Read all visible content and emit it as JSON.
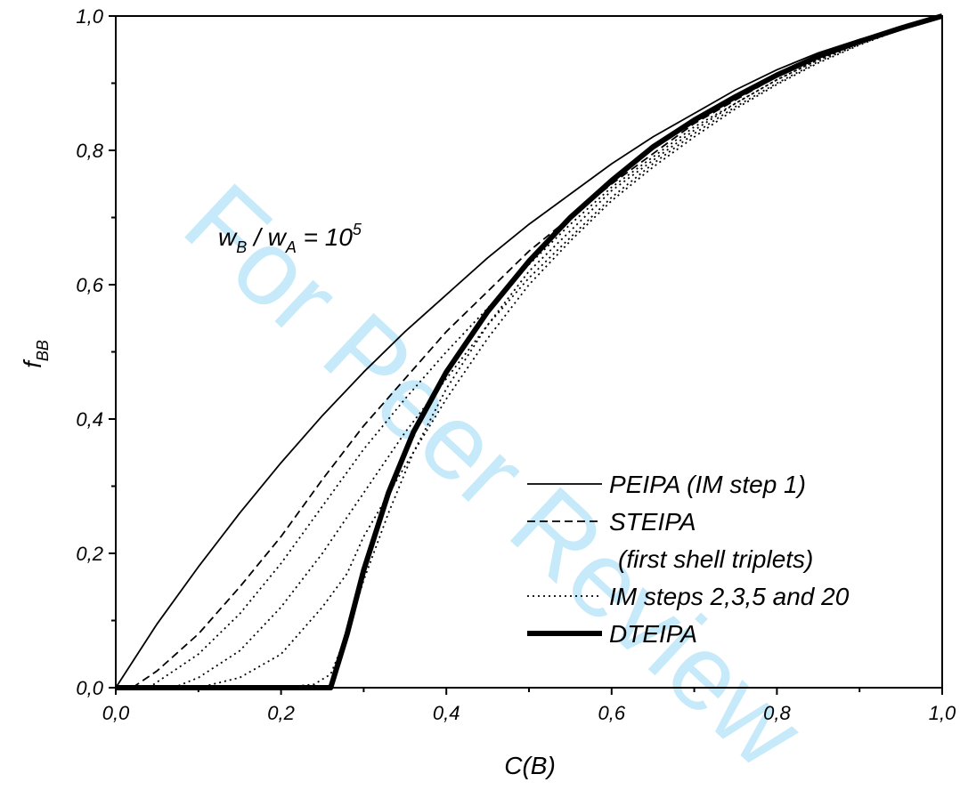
{
  "chart_data": {
    "type": "line",
    "xlabel": "C(B)",
    "ylabel_main": "f",
    "ylabel_sub": "BB",
    "xlim": [
      0,
      1
    ],
    "ylim": [
      0,
      1
    ],
    "x_ticks": [
      {
        "value": 0.0,
        "label": "0,0"
      },
      {
        "value": 0.2,
        "label": "0,2"
      },
      {
        "value": 0.4,
        "label": "0,4"
      },
      {
        "value": 0.6,
        "label": "0,6"
      },
      {
        "value": 0.8,
        "label": "0,8"
      },
      {
        "value": 1.0,
        "label": "1,0"
      }
    ],
    "y_ticks": [
      {
        "value": 0.0,
        "label": "0,0"
      },
      {
        "value": 0.2,
        "label": "0,2"
      },
      {
        "value": 0.4,
        "label": "0,4"
      },
      {
        "value": 0.6,
        "label": "0,6"
      },
      {
        "value": 0.8,
        "label": "0,8"
      },
      {
        "value": 1.0,
        "label": "1,0"
      }
    ],
    "grid": false,
    "legend_position": "bottom-right",
    "annotation": {
      "w": "w",
      "sub_b": "B",
      "slash": " / ",
      "sub_a": "A",
      "eq": " = 10",
      "exp": "5"
    },
    "watermark": "For Peer Review",
    "series": [
      {
        "name": "PEIPA (IM step 1)",
        "style": "solid",
        "in_legend": true,
        "points": [
          [
            0,
            0
          ],
          [
            0.05,
            0.095
          ],
          [
            0.1,
            0.18
          ],
          [
            0.15,
            0.26
          ],
          [
            0.2,
            0.335
          ],
          [
            0.25,
            0.405
          ],
          [
            0.3,
            0.47
          ],
          [
            0.35,
            0.53
          ],
          [
            0.4,
            0.585
          ],
          [
            0.45,
            0.64
          ],
          [
            0.5,
            0.69
          ],
          [
            0.55,
            0.735
          ],
          [
            0.6,
            0.78
          ],
          [
            0.65,
            0.82
          ],
          [
            0.7,
            0.855
          ],
          [
            0.75,
            0.89
          ],
          [
            0.8,
            0.92
          ],
          [
            0.85,
            0.945
          ],
          [
            0.9,
            0.965
          ],
          [
            0.95,
            0.983
          ],
          [
            1,
            1
          ]
        ]
      },
      {
        "name": "STEIPA",
        "style": "dashed",
        "in_legend": true,
        "points": [
          [
            0.02,
            0
          ],
          [
            0.05,
            0.025
          ],
          [
            0.1,
            0.08
          ],
          [
            0.15,
            0.15
          ],
          [
            0.2,
            0.225
          ],
          [
            0.25,
            0.31
          ],
          [
            0.3,
            0.39
          ],
          [
            0.35,
            0.46
          ],
          [
            0.4,
            0.53
          ],
          [
            0.45,
            0.59
          ],
          [
            0.5,
            0.65
          ],
          [
            0.55,
            0.7
          ],
          [
            0.6,
            0.75
          ],
          [
            0.65,
            0.795
          ],
          [
            0.7,
            0.84
          ],
          [
            0.75,
            0.875
          ],
          [
            0.8,
            0.91
          ],
          [
            0.85,
            0.94
          ],
          [
            0.9,
            0.963
          ],
          [
            0.95,
            0.982
          ],
          [
            1,
            1
          ]
        ]
      },
      {
        "name": "(first shell triplets)",
        "style": "none",
        "in_legend": true,
        "points": []
      },
      {
        "name": "IM steps 2,3,5 and 20",
        "style": "dotted",
        "in_legend": true,
        "points": [
          [
            0.04,
            0
          ],
          [
            0.1,
            0.05
          ],
          [
            0.15,
            0.11
          ],
          [
            0.2,
            0.185
          ],
          [
            0.25,
            0.27
          ],
          [
            0.3,
            0.355
          ],
          [
            0.35,
            0.43
          ],
          [
            0.4,
            0.5
          ],
          [
            0.45,
            0.565
          ],
          [
            0.5,
            0.63
          ],
          [
            0.55,
            0.69
          ],
          [
            0.6,
            0.745
          ],
          [
            0.65,
            0.79
          ],
          [
            0.7,
            0.835
          ],
          [
            0.75,
            0.87
          ],
          [
            0.8,
            0.905
          ],
          [
            0.85,
            0.935
          ],
          [
            0.9,
            0.96
          ],
          [
            0.95,
            0.98
          ],
          [
            1,
            1
          ]
        ]
      },
      {
        "name": "",
        "style": "dotted",
        "in_legend": false,
        "points": [
          [
            0.07,
            0
          ],
          [
            0.1,
            0.015
          ],
          [
            0.15,
            0.055
          ],
          [
            0.2,
            0.12
          ],
          [
            0.25,
            0.2
          ],
          [
            0.3,
            0.29
          ],
          [
            0.35,
            0.38
          ],
          [
            0.4,
            0.46
          ],
          [
            0.45,
            0.54
          ],
          [
            0.5,
            0.61
          ],
          [
            0.55,
            0.67
          ],
          [
            0.6,
            0.73
          ],
          [
            0.65,
            0.78
          ],
          [
            0.7,
            0.825
          ],
          [
            0.75,
            0.865
          ],
          [
            0.8,
            0.9
          ],
          [
            0.85,
            0.932
          ],
          [
            0.9,
            0.958
          ],
          [
            0.95,
            0.98
          ],
          [
            1,
            1
          ]
        ]
      },
      {
        "name": "",
        "style": "dotted",
        "in_legend": false,
        "points": [
          [
            0.1,
            0
          ],
          [
            0.15,
            0.015
          ],
          [
            0.2,
            0.05
          ],
          [
            0.25,
            0.12
          ],
          [
            0.28,
            0.17
          ],
          [
            0.3,
            0.225
          ],
          [
            0.35,
            0.33
          ],
          [
            0.4,
            0.43
          ],
          [
            0.45,
            0.52
          ],
          [
            0.5,
            0.6
          ],
          [
            0.55,
            0.665
          ],
          [
            0.6,
            0.725
          ],
          [
            0.65,
            0.775
          ],
          [
            0.7,
            0.82
          ],
          [
            0.75,
            0.862
          ],
          [
            0.8,
            0.898
          ],
          [
            0.85,
            0.93
          ],
          [
            0.9,
            0.957
          ],
          [
            0.95,
            0.98
          ],
          [
            1,
            1
          ]
        ]
      },
      {
        "name": "",
        "style": "dotted",
        "in_legend": false,
        "points": [
          [
            0.2,
            0
          ],
          [
            0.24,
            0.005
          ],
          [
            0.26,
            0.02
          ],
          [
            0.28,
            0.08
          ],
          [
            0.3,
            0.16
          ],
          [
            0.33,
            0.26
          ],
          [
            0.36,
            0.35
          ],
          [
            0.4,
            0.445
          ],
          [
            0.45,
            0.54
          ],
          [
            0.5,
            0.62
          ],
          [
            0.55,
            0.68
          ],
          [
            0.6,
            0.74
          ],
          [
            0.65,
            0.785
          ],
          [
            0.7,
            0.83
          ],
          [
            0.75,
            0.87
          ],
          [
            0.8,
            0.905
          ],
          [
            0.85,
            0.935
          ],
          [
            0.9,
            0.96
          ],
          [
            0.95,
            0.98
          ],
          [
            1,
            1
          ]
        ]
      },
      {
        "name": "DTEIPA",
        "style": "thick",
        "in_legend": true,
        "points": [
          [
            0,
            0
          ],
          [
            0.26,
            0
          ],
          [
            0.28,
            0.08
          ],
          [
            0.3,
            0.175
          ],
          [
            0.33,
            0.29
          ],
          [
            0.36,
            0.38
          ],
          [
            0.4,
            0.47
          ],
          [
            0.45,
            0.56
          ],
          [
            0.5,
            0.635
          ],
          [
            0.55,
            0.7
          ],
          [
            0.6,
            0.755
          ],
          [
            0.65,
            0.805
          ],
          [
            0.7,
            0.845
          ],
          [
            0.75,
            0.88
          ],
          [
            0.8,
            0.912
          ],
          [
            0.85,
            0.94
          ],
          [
            0.9,
            0.962
          ],
          [
            0.95,
            0.982
          ],
          [
            1,
            1
          ]
        ]
      }
    ]
  }
}
